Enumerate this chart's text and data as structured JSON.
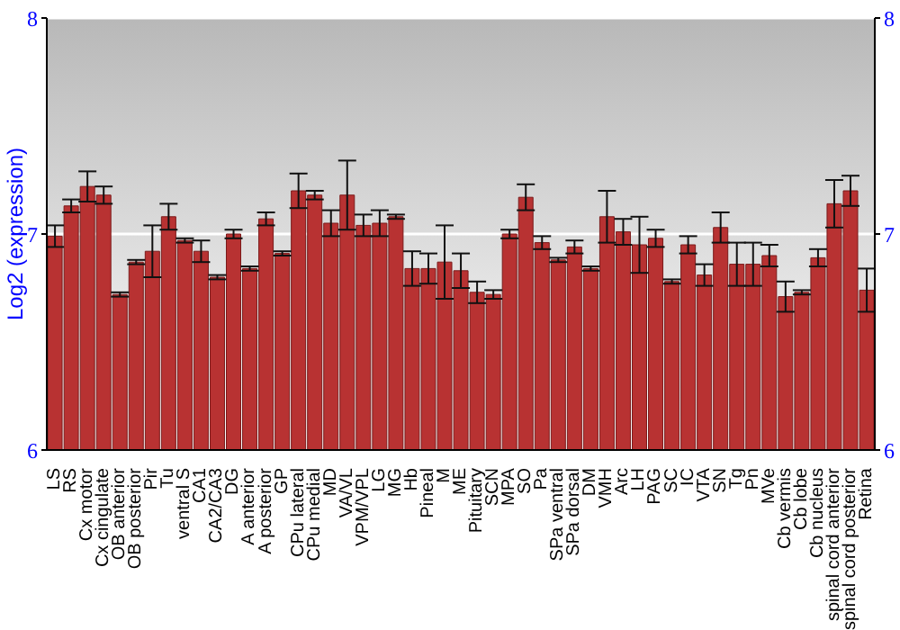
{
  "chart_data": {
    "type": "bar",
    "ylabel": "Log2 (expression)",
    "categories": [
      "LS",
      "RS",
      "Cx motor",
      "Cx cingulate",
      "OB anterior",
      "OB posterior",
      "Pir",
      "Tu",
      "ventral S",
      "CA1",
      "CA2/CA3",
      "DG",
      "A anterior",
      "A posterior",
      "GP",
      "CPu lateral",
      "CPu medial",
      "MD",
      "VA/VL",
      "VPM/VPL",
      "LG",
      "MG",
      "Hb",
      "Pineal",
      "M",
      "ME",
      "Pituitary",
      "SCN",
      "MPA",
      "SO",
      "Pa",
      "SPa ventral",
      "SPa dorsal",
      "DM",
      "VMH",
      "Arc",
      "LH",
      "PAG",
      "SC",
      "IC",
      "VTA",
      "SN",
      "Tg",
      "Pn",
      "MVe",
      "Cb vermis",
      "Cb lobe",
      "Cb nucleus",
      "spinal cord anterior",
      "spinal cord posterior",
      "Retina"
    ],
    "values": [
      6.99,
      7.13,
      7.22,
      7.18,
      6.72,
      6.87,
      6.92,
      7.08,
      6.97,
      6.92,
      6.8,
      7.0,
      6.84,
      7.07,
      6.91,
      7.2,
      7.18,
      7.05,
      7.18,
      7.04,
      7.05,
      7.08,
      6.84,
      6.84,
      6.87,
      6.83,
      6.73,
      6.72,
      7.0,
      7.17,
      6.96,
      6.88,
      6.94,
      6.84,
      7.08,
      7.01,
      6.95,
      6.98,
      6.78,
      6.95,
      6.81,
      7.03,
      6.86,
      6.86,
      6.9,
      6.71,
      6.73,
      6.89,
      7.14,
      7.2,
      6.74
    ],
    "errors": [
      0.05,
      0.03,
      0.07,
      0.04,
      0.01,
      0.01,
      0.12,
      0.06,
      0.01,
      0.05,
      0.01,
      0.02,
      0.01,
      0.03,
      0.01,
      0.08,
      0.02,
      0.06,
      0.16,
      0.05,
      0.06,
      0.01,
      0.08,
      0.07,
      0.17,
      0.08,
      0.05,
      0.02,
      0.02,
      0.06,
      0.03,
      0.01,
      0.03,
      0.01,
      0.12,
      0.06,
      0.13,
      0.04,
      0.01,
      0.04,
      0.05,
      0.07,
      0.1,
      0.1,
      0.05,
      0.07,
      0.01,
      0.04,
      0.11,
      0.07,
      0.1
    ],
    "color": "#b83232",
    "ylim": [
      6,
      8
    ],
    "yticks": [
      6,
      7,
      8
    ],
    "y2lim": [
      6,
      8
    ],
    "y2ticks": [
      6,
      7,
      8
    ],
    "grid": "y"
  }
}
